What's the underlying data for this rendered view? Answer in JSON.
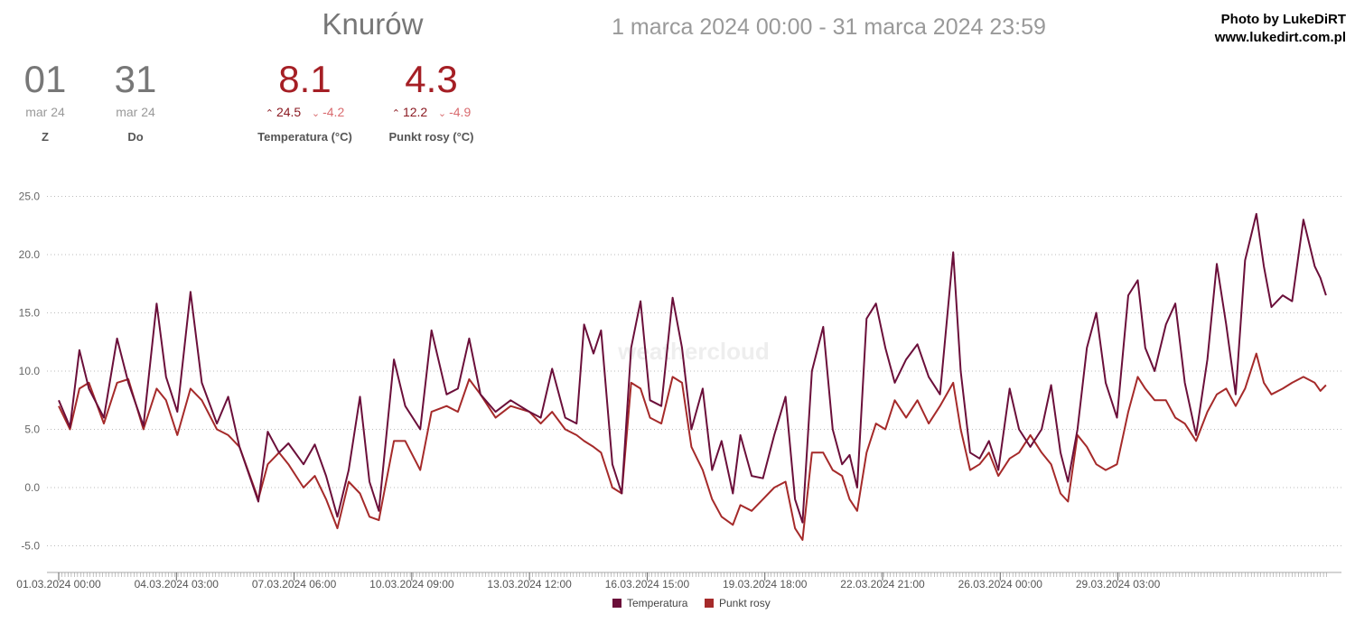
{
  "header": {
    "station": "Knurów",
    "range": "1 marca 2024 00:00 - 31 marca 2024 23:59",
    "credit_line1": "Photo by LukeDiRT",
    "credit_line2": "www.lukedirt.com.pl"
  },
  "summary": {
    "from": {
      "day": "01",
      "month": "mar 24",
      "label": "Z"
    },
    "to": {
      "day": "31",
      "month": "mar 24",
      "label": "Do"
    },
    "temperature": {
      "value": "8.1",
      "high": "24.5",
      "low": "-4.2",
      "label": "Temperatura (°C)"
    },
    "dewpoint": {
      "value": "4.3",
      "high": "12.2",
      "low": "-4.9",
      "label": "Punkt rosy (°C)"
    }
  },
  "watermark": "weathercloud",
  "colors": {
    "temperature": "#6b0f3a",
    "dewpoint": "#a52a2a"
  },
  "chart_data": {
    "type": "line",
    "xlabel": "",
    "ylabel": "",
    "ylim": [
      -7.5,
      25.0
    ],
    "yticks": [
      "25.0",
      "20.0",
      "15.0",
      "10.0",
      "5.0",
      "0.0",
      "-5.0"
    ],
    "xticks": [
      "01.03.2024 00:00",
      "04.03.2024 03:00",
      "07.03.2024 06:00",
      "10.03.2024 09:00",
      "13.03.2024 12:00",
      "16.03.2024 15:00",
      "19.03.2024 18:00",
      "22.03.2024 21:00",
      "26.03.2024 00:00",
      "29.03.2024 03:00"
    ],
    "x_unit": "days since 01.03.2024 00:00",
    "grid": "horizontal dotted",
    "legend": "bottom-center",
    "series": [
      {
        "name": "Temperatura",
        "points": [
          [
            0,
            7.5
          ],
          [
            0.3,
            5.2
          ],
          [
            0.55,
            11.8
          ],
          [
            0.8,
            8.5
          ],
          [
            1.2,
            6.0
          ],
          [
            1.55,
            12.8
          ],
          [
            1.85,
            9.0
          ],
          [
            2.25,
            5.3
          ],
          [
            2.6,
            15.8
          ],
          [
            2.85,
            9.5
          ],
          [
            3.15,
            6.5
          ],
          [
            3.5,
            16.8
          ],
          [
            3.8,
            9.0
          ],
          [
            4.2,
            5.5
          ],
          [
            4.5,
            7.8
          ],
          [
            4.8,
            3.5
          ],
          [
            5.3,
            -1.2
          ],
          [
            5.55,
            4.8
          ],
          [
            5.85,
            3.0
          ],
          [
            6.1,
            3.8
          ],
          [
            6.5,
            2.0
          ],
          [
            6.8,
            3.7
          ],
          [
            7.1,
            1.0
          ],
          [
            7.4,
            -2.5
          ],
          [
            7.7,
            1.5
          ],
          [
            8.0,
            7.8
          ],
          [
            8.25,
            0.5
          ],
          [
            8.5,
            -2.0
          ],
          [
            8.9,
            11.0
          ],
          [
            9.2,
            7.0
          ],
          [
            9.6,
            5.0
          ],
          [
            9.9,
            13.5
          ],
          [
            10.3,
            8.0
          ],
          [
            10.6,
            8.5
          ],
          [
            10.9,
            12.8
          ],
          [
            11.2,
            8.0
          ],
          [
            11.6,
            6.5
          ],
          [
            12.0,
            7.5
          ],
          [
            12.5,
            6.5
          ],
          [
            12.8,
            6.0
          ],
          [
            13.1,
            10.2
          ],
          [
            13.45,
            6.0
          ],
          [
            13.75,
            5.5
          ],
          [
            13.95,
            14.0
          ],
          [
            14.2,
            11.5
          ],
          [
            14.4,
            13.5
          ],
          [
            14.7,
            2.0
          ],
          [
            14.95,
            -0.5
          ],
          [
            15.2,
            12.0
          ],
          [
            15.45,
            16.0
          ],
          [
            15.7,
            7.5
          ],
          [
            16.0,
            7.0
          ],
          [
            16.3,
            16.3
          ],
          [
            16.55,
            12.0
          ],
          [
            16.8,
            5.0
          ],
          [
            17.1,
            8.5
          ],
          [
            17.35,
            1.5
          ],
          [
            17.6,
            4.0
          ],
          [
            17.9,
            -0.5
          ],
          [
            18.1,
            4.5
          ],
          [
            18.4,
            1.0
          ],
          [
            18.7,
            0.8
          ],
          [
            19.0,
            4.5
          ],
          [
            19.3,
            7.8
          ],
          [
            19.55,
            -1.0
          ],
          [
            19.75,
            -3.0
          ],
          [
            20.0,
            10.0
          ],
          [
            20.3,
            13.8
          ],
          [
            20.55,
            5.0
          ],
          [
            20.8,
            2.0
          ],
          [
            21.0,
            2.8
          ],
          [
            21.2,
            0.0
          ],
          [
            21.45,
            14.5
          ],
          [
            21.7,
            15.8
          ],
          [
            21.95,
            12.0
          ],
          [
            22.2,
            9.0
          ],
          [
            22.5,
            11.0
          ],
          [
            22.8,
            12.3
          ],
          [
            23.1,
            9.5
          ],
          [
            23.4,
            8.0
          ],
          [
            23.75,
            20.2
          ],
          [
            23.95,
            10.0
          ],
          [
            24.2,
            3.0
          ],
          [
            24.45,
            2.5
          ],
          [
            24.7,
            4.0
          ],
          [
            24.95,
            1.5
          ],
          [
            25.25,
            8.5
          ],
          [
            25.5,
            5.0
          ],
          [
            25.8,
            3.5
          ],
          [
            26.1,
            5.0
          ],
          [
            26.35,
            8.8
          ],
          [
            26.6,
            3.0
          ],
          [
            26.8,
            0.5
          ],
          [
            27.05,
            5.0
          ],
          [
            27.3,
            12.0
          ],
          [
            27.55,
            15.0
          ],
          [
            27.8,
            9.0
          ],
          [
            28.1,
            6.0
          ],
          [
            28.4,
            16.5
          ],
          [
            28.65,
            17.8
          ],
          [
            28.85,
            12.0
          ],
          [
            29.1,
            10.0
          ],
          [
            29.4,
            14.0
          ],
          [
            29.65,
            15.8
          ],
          [
            29.9,
            9.0
          ],
          [
            30.2,
            4.5
          ],
          [
            30.5,
            11.0
          ],
          [
            30.75,
            19.2
          ],
          [
            31.0,
            14.0
          ],
          [
            31.25,
            8.0
          ],
          [
            31.5,
            19.5
          ],
          [
            31.8,
            23.5
          ],
          [
            32.0,
            19.0
          ],
          [
            32.2,
            15.5
          ],
          [
            32.5,
            16.5
          ],
          [
            32.75,
            16.0
          ],
          [
            33.05,
            23.0
          ],
          [
            33.35,
            19.0
          ],
          [
            33.5,
            18.0
          ],
          [
            33.65,
            16.5
          ]
        ]
      },
      {
        "name": "Punkt rosy",
        "points": [
          [
            0,
            7.0
          ],
          [
            0.3,
            5.0
          ],
          [
            0.55,
            8.5
          ],
          [
            0.8,
            9.0
          ],
          [
            1.2,
            5.5
          ],
          [
            1.55,
            9.0
          ],
          [
            1.85,
            9.3
          ],
          [
            2.25,
            5.0
          ],
          [
            2.6,
            8.5
          ],
          [
            2.85,
            7.5
          ],
          [
            3.15,
            4.5
          ],
          [
            3.5,
            8.5
          ],
          [
            3.8,
            7.5
          ],
          [
            4.2,
            5.0
          ],
          [
            4.5,
            4.5
          ],
          [
            4.8,
            3.5
          ],
          [
            5.3,
            -1.0
          ],
          [
            5.55,
            2.0
          ],
          [
            5.85,
            3.0
          ],
          [
            6.1,
            2.0
          ],
          [
            6.5,
            0.0
          ],
          [
            6.8,
            1.0
          ],
          [
            7.1,
            -1.0
          ],
          [
            7.4,
            -3.5
          ],
          [
            7.7,
            0.5
          ],
          [
            8.0,
            -0.5
          ],
          [
            8.25,
            -2.5
          ],
          [
            8.5,
            -2.8
          ],
          [
            8.9,
            4.0
          ],
          [
            9.2,
            4.0
          ],
          [
            9.6,
            1.5
          ],
          [
            9.9,
            6.5
          ],
          [
            10.3,
            7.0
          ],
          [
            10.6,
            6.5
          ],
          [
            10.9,
            9.3
          ],
          [
            11.2,
            8.0
          ],
          [
            11.6,
            6.0
          ],
          [
            12.0,
            7.0
          ],
          [
            12.5,
            6.5
          ],
          [
            12.8,
            5.5
          ],
          [
            13.1,
            6.5
          ],
          [
            13.45,
            5.0
          ],
          [
            13.75,
            4.5
          ],
          [
            13.95,
            4.0
          ],
          [
            14.2,
            3.5
          ],
          [
            14.4,
            3.0
          ],
          [
            14.7,
            0.0
          ],
          [
            14.95,
            -0.5
          ],
          [
            15.2,
            9.0
          ],
          [
            15.45,
            8.5
          ],
          [
            15.7,
            6.0
          ],
          [
            16.0,
            5.5
          ],
          [
            16.3,
            9.5
          ],
          [
            16.55,
            9.0
          ],
          [
            16.8,
            3.5
          ],
          [
            17.1,
            1.5
          ],
          [
            17.35,
            -1.0
          ],
          [
            17.6,
            -2.5
          ],
          [
            17.9,
            -3.2
          ],
          [
            18.1,
            -1.5
          ],
          [
            18.4,
            -2.0
          ],
          [
            18.7,
            -1.0
          ],
          [
            19.0,
            0.0
          ],
          [
            19.3,
            0.5
          ],
          [
            19.55,
            -3.5
          ],
          [
            19.75,
            -4.5
          ],
          [
            20.0,
            3.0
          ],
          [
            20.3,
            3.0
          ],
          [
            20.55,
            1.5
          ],
          [
            20.8,
            1.0
          ],
          [
            21.0,
            -1.0
          ],
          [
            21.2,
            -2.0
          ],
          [
            21.45,
            3.0
          ],
          [
            21.7,
            5.5
          ],
          [
            21.95,
            5.0
          ],
          [
            22.2,
            7.5
          ],
          [
            22.5,
            6.0
          ],
          [
            22.8,
            7.5
          ],
          [
            23.1,
            5.5
          ],
          [
            23.4,
            7.0
          ],
          [
            23.75,
            9.0
          ],
          [
            23.95,
            5.0
          ],
          [
            24.2,
            1.5
          ],
          [
            24.45,
            2.0
          ],
          [
            24.7,
            3.0
          ],
          [
            24.95,
            1.0
          ],
          [
            25.25,
            2.5
          ],
          [
            25.5,
            3.0
          ],
          [
            25.8,
            4.5
          ],
          [
            26.1,
            3.0
          ],
          [
            26.35,
            2.0
          ],
          [
            26.6,
            -0.5
          ],
          [
            26.8,
            -1.2
          ],
          [
            27.05,
            4.5
          ],
          [
            27.3,
            3.5
          ],
          [
            27.55,
            2.0
          ],
          [
            27.8,
            1.5
          ],
          [
            28.1,
            2.0
          ],
          [
            28.4,
            6.5
          ],
          [
            28.65,
            9.5
          ],
          [
            28.85,
            8.5
          ],
          [
            29.1,
            7.5
          ],
          [
            29.4,
            7.5
          ],
          [
            29.65,
            6.0
          ],
          [
            29.9,
            5.5
          ],
          [
            30.2,
            4.0
          ],
          [
            30.5,
            6.5
          ],
          [
            30.75,
            8.0
          ],
          [
            31.0,
            8.5
          ],
          [
            31.25,
            7.0
          ],
          [
            31.5,
            8.5
          ],
          [
            31.8,
            11.5
          ],
          [
            32.0,
            9.0
          ],
          [
            32.2,
            8.0
          ],
          [
            32.5,
            8.5
          ],
          [
            32.75,
            9.0
          ],
          [
            33.05,
            9.5
          ],
          [
            33.35,
            9.0
          ],
          [
            33.5,
            8.3
          ],
          [
            33.65,
            8.8
          ]
        ]
      }
    ]
  }
}
